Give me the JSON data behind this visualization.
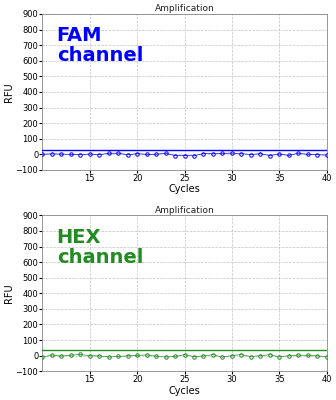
{
  "title": "Amplification",
  "xlabel": "Cycles",
  "ylabel": "RFU",
  "xlim": [
    10,
    40
  ],
  "ylim": [
    -100,
    900
  ],
  "yticks": [
    -100,
    0,
    100,
    200,
    300,
    400,
    500,
    600,
    700,
    800,
    900
  ],
  "xticks": [
    15,
    20,
    25,
    30,
    35,
    40
  ],
  "fam_color": "#0000FF",
  "hex_color": "#228B22",
  "fam_label": "FAM\nchannel",
  "hex_label": "HEX\nchannel",
  "data_cycles_start": 10,
  "data_cycles_end": 40,
  "fam_line_y": 28,
  "hex_line_y": 35,
  "background_color": "#ffffff",
  "grid_color": "#bbbbbb",
  "title_fontsize": 6.5,
  "label_fontsize": 7,
  "tick_fontsize": 6,
  "channel_fontsize": 14
}
